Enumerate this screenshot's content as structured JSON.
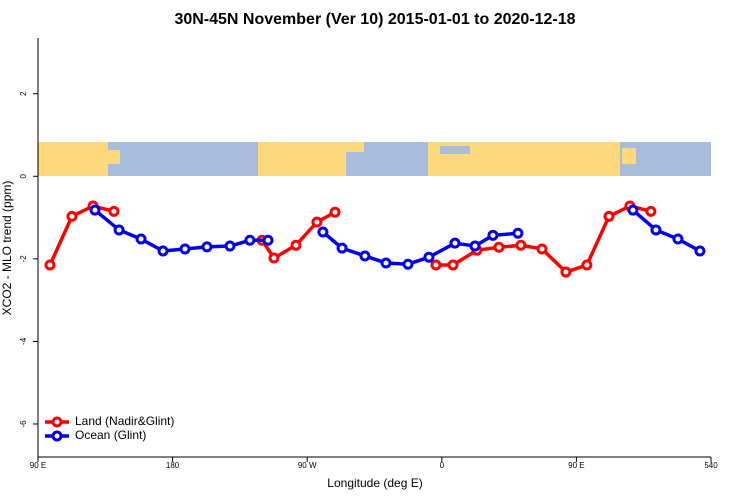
{
  "chart_data": {
    "type": "line",
    "title": "30N-45N November (Ver 10)   2015-01-01 to 2020-12-18",
    "x_label": "Longitude (deg E)",
    "y_label": "XCO2 - MLO trend (ppm)",
    "xlim": [
      90,
      540
    ],
    "ylim": [
      -6.8,
      3.35
    ],
    "xticks": [
      {
        "value": 90,
        "label": "90 E"
      },
      180,
      {
        "value": 270,
        "label": "90 W"
      },
      {
        "value": 360,
        "label": "0"
      },
      {
        "value": 450,
        "label": "90 E"
      },
      540
    ],
    "yticks": [
      2,
      0,
      -2,
      -4,
      -6
    ],
    "legend": "bottom-left",
    "series": [
      {
        "name": "Land (Nadir&Glint)",
        "color": "#ff0000",
        "x": [
          98.0,
          112.7,
          126.8,
          140.8,
          null,
          239.8,
          247.8,
          262.5,
          276.5,
          288.6,
          null,
          356.1,
          367.5,
          383.5,
          398.2,
          412.9,
          427.0,
          443.0,
          457.0,
          471.8,
          485.8,
          499.8
        ],
        "values": [
          -2.15,
          -0.97,
          -0.72,
          -0.85,
          null,
          -1.55,
          -1.98,
          -1.67,
          -1.11,
          -0.87,
          null,
          -2.15,
          -2.15,
          -1.79,
          -1.72,
          -1.67,
          -1.76,
          -2.32,
          -2.15,
          -0.97,
          -0.72,
          -0.85
        ]
      },
      {
        "name": "Ocean (Glint)",
        "color": "#0000ee",
        "x": [
          128.1,
          144.2,
          158.9,
          173.6,
          188.3,
          203.0,
          218.4,
          231.7,
          243.8,
          null,
          280.5,
          293.3,
          308.6,
          322.7,
          337.4,
          351.4,
          368.8,
          382.2,
          394.2,
          410.9,
          null,
          487.8,
          503.2,
          517.9,
          532.6
        ],
        "values": [
          -0.82,
          -1.3,
          -1.52,
          -1.81,
          -1.76,
          -1.71,
          -1.69,
          -1.55,
          -1.55,
          null,
          -1.35,
          -1.74,
          -1.93,
          -2.1,
          -2.13,
          -1.96,
          -1.62,
          -1.69,
          -1.43,
          -1.38,
          null,
          -0.82,
          -1.3,
          -1.52,
          -1.81
        ]
      }
    ]
  }
}
